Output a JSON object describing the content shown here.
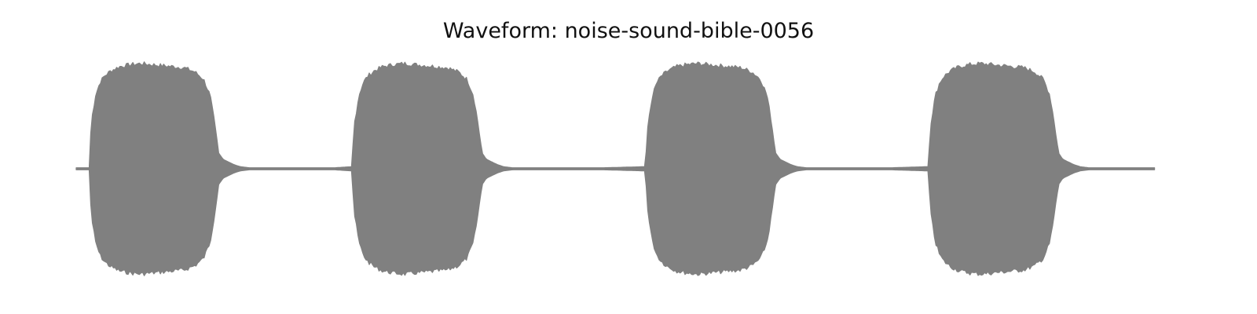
{
  "chart_data": {
    "type": "area",
    "title": "Waveform: noise-sound-bible-0056",
    "xlabel": "",
    "ylabel": "",
    "axes_visible": false,
    "grid": false,
    "color": "#808080",
    "xlim": [
      0,
      1
    ],
    "ylim": [
      -1,
      1
    ],
    "envelope_note": "amplitude envelope of a repeating 4-burst sound",
    "series": [
      {
        "x": [
          0.0,
          0.012,
          0.014,
          0.018,
          0.022,
          0.026,
          0.032,
          0.04,
          0.05,
          0.06,
          0.07,
          0.08,
          0.09,
          0.1,
          0.11,
          0.118,
          0.124,
          0.128,
          0.132,
          0.136,
          0.14,
          0.146,
          0.152,
          0.16,
          0.17,
          0.2,
          0.24,
          0.255,
          0.258,
          0.262,
          0.266,
          0.27,
          0.276,
          0.284,
          0.294,
          0.304,
          0.314,
          0.324,
          0.334,
          0.344,
          0.354,
          0.362,
          0.368,
          0.372,
          0.376,
          0.38,
          0.384,
          0.39,
          0.396,
          0.404,
          0.414,
          0.444,
          0.49,
          0.527,
          0.53,
          0.534,
          0.538,
          0.542,
          0.548,
          0.556,
          0.566,
          0.576,
          0.586,
          0.596,
          0.606,
          0.616,
          0.626,
          0.634,
          0.64,
          0.644,
          0.648,
          0.652,
          0.656,
          0.662,
          0.668,
          0.676,
          0.686,
          0.716,
          0.756,
          0.789,
          0.792,
          0.796,
          0.8,
          0.804,
          0.81,
          0.818,
          0.828,
          0.838,
          0.848,
          0.858,
          0.868,
          0.878,
          0.888,
          0.896,
          0.902,
          0.906,
          0.91,
          0.914,
          0.918,
          0.924,
          0.93,
          0.938,
          0.948,
          0.978,
          1.0
        ],
        "amplitude": [
          0.01,
          0.01,
          0.45,
          0.7,
          0.82,
          0.88,
          0.93,
          0.97,
          0.99,
          1.0,
          0.99,
          0.98,
          0.97,
          0.96,
          0.92,
          0.85,
          0.7,
          0.45,
          0.15,
          0.09,
          0.07,
          0.04,
          0.02,
          0.01,
          0.01,
          0.01,
          0.01,
          0.02,
          0.45,
          0.7,
          0.82,
          0.88,
          0.93,
          0.97,
          0.99,
          1.0,
          0.99,
          0.98,
          0.97,
          0.96,
          0.92,
          0.85,
          0.7,
          0.45,
          0.15,
          0.09,
          0.07,
          0.04,
          0.02,
          0.01,
          0.01,
          0.01,
          0.01,
          0.02,
          0.45,
          0.7,
          0.82,
          0.88,
          0.93,
          0.97,
          0.99,
          1.0,
          0.99,
          0.98,
          0.97,
          0.96,
          0.92,
          0.85,
          0.7,
          0.45,
          0.15,
          0.09,
          0.07,
          0.04,
          0.02,
          0.01,
          0.01,
          0.01,
          0.01,
          0.02,
          0.45,
          0.7,
          0.82,
          0.88,
          0.93,
          0.97,
          0.99,
          1.0,
          0.99,
          0.98,
          0.97,
          0.96,
          0.92,
          0.85,
          0.7,
          0.45,
          0.15,
          0.09,
          0.07,
          0.04,
          0.02,
          0.01,
          0.01,
          0.01,
          0.01
        ]
      }
    ]
  }
}
